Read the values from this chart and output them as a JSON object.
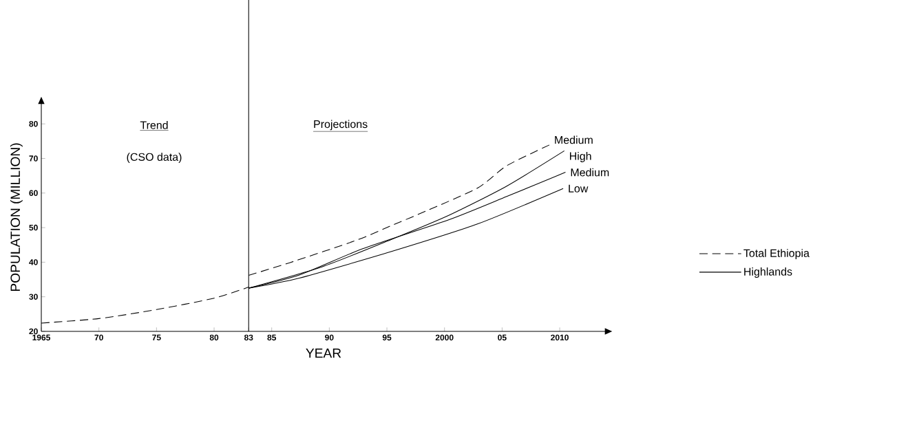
{
  "chart_data": {
    "type": "line",
    "xlabel": "YEAR",
    "ylabel": "POPULATION (MILLION)",
    "xlim": [
      1965,
      2014
    ],
    "ylim": [
      20,
      86
    ],
    "xticks": [
      {
        "value": 1965,
        "label": "1965"
      },
      {
        "value": 1970,
        "label": "70"
      },
      {
        "value": 1975,
        "label": "75"
      },
      {
        "value": 1980,
        "label": "80"
      },
      {
        "value": 1983,
        "label": "83"
      },
      {
        "value": 1985,
        "label": "85"
      },
      {
        "value": 1990,
        "label": "90"
      },
      {
        "value": 1995,
        "label": "95"
      },
      {
        "value": 2000,
        "label": "2000"
      },
      {
        "value": 2005,
        "label": "05"
      },
      {
        "value": 2010,
        "label": "2010"
      }
    ],
    "yticks": [
      20,
      30,
      40,
      50,
      60,
      70,
      80
    ],
    "series": [
      {
        "name": "Total Ethiopia",
        "color": "#000000",
        "line_style": "dashed",
        "x": [
          1965,
          1970,
          1975,
          1980,
          1983
        ],
        "values": [
          22.4,
          23.7,
          26.3,
          29.6,
          32.8
        ]
      },
      {
        "color": "#000000",
        "line_style": "dashed",
        "x": [
          1983,
          1986.6,
          1992.4,
          1995.4,
          1998.4,
          2002.9,
          2005.4,
          2009.1
        ],
        "values": [
          36.2,
          39.9,
          46.4,
          50.6,
          54.8,
          61.5,
          67.9,
          73.9
        ]
      },
      {
        "name": "Highlands",
        "color": "#000000",
        "line_style": "solid",
        "x": [
          1983,
          1989.4,
          1995.4,
          2000.4,
          2005.4,
          2010.4
        ],
        "values": [
          32.5,
          38.7,
          46.6,
          53.6,
          62.0,
          72.2
        ]
      },
      {
        "color": "#000000",
        "line_style": "solid",
        "x": [
          1983,
          1987.4,
          1992.9,
          2000.4,
          2005.4,
          2010.5
        ],
        "values": [
          32.5,
          36.3,
          43.9,
          52.3,
          59.0,
          66.0
        ]
      },
      {
        "color": "#000000",
        "line_style": "solid",
        "x": [
          1983,
          1987.4,
          1995.4,
          2002.9,
          2010.3
        ],
        "values": [
          32.5,
          35.4,
          43.1,
          51.1,
          61.3
        ]
      }
    ],
    "ref_lines": [
      {
        "axis": "x",
        "value": 1983,
        "color": "#000000"
      }
    ],
    "annotations": [
      "Trend",
      "(CSO data)",
      "Projections",
      {
        "text": "Medium",
        "x": 2009.1,
        "y": 73.9
      },
      {
        "text": "High",
        "x": 2010.4,
        "y": 72.2
      },
      {
        "text": "Medium",
        "x": 2010.5,
        "y": 66.0
      },
      {
        "text": "Low",
        "x": 2010.3,
        "y": 61.3
      }
    ],
    "legend": "right",
    "grid": false,
    "marker": "none"
  }
}
